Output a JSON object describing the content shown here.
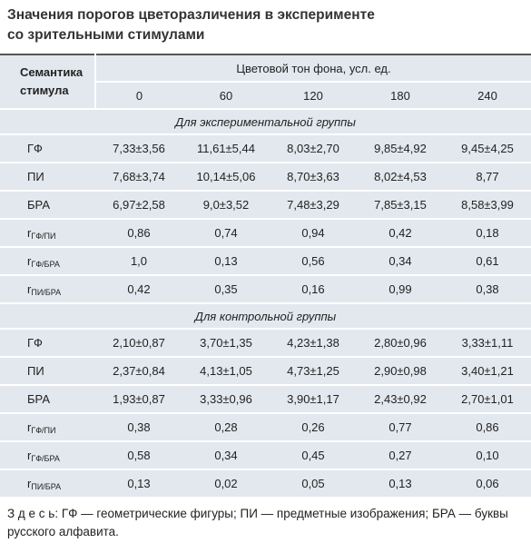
{
  "title": [
    "Значения порогов цветоразличения в эксперименте",
    "со зрительными стимулами"
  ],
  "table": {
    "header": {
      "stub": [
        "Семантика",
        "стимула"
      ],
      "group": "Цветовой тон фона, усл. ед.",
      "columns": [
        "0",
        "60",
        "120",
        "180",
        "240"
      ]
    },
    "sections": [
      {
        "title": "Для экспериментальной группы",
        "rows": [
          {
            "label": "ГФ",
            "cells": [
              "7,33±3,56",
              "11,61±5,44",
              "8,03±2,70",
              "9,85±4,92",
              "9,45±4,25"
            ]
          },
          {
            "label": "ПИ",
            "cells": [
              "7,68±3,74",
              "10,14±5,06",
              "8,70±3,63",
              "8,02±4,53",
              "8,77"
            ]
          },
          {
            "label": "БРА",
            "cells": [
              "6,97±2,58",
              "9,0±3,52",
              "7,48±3,29",
              "7,85±3,15",
              "8,58±3,99"
            ]
          },
          {
            "label": "r",
            "label_sub": "ГФ/ПИ",
            "cells": [
              "0,86",
              "0,74",
              "0,94",
              "0,42",
              "0,18"
            ]
          },
          {
            "label": "r",
            "label_sub": "ГФ/БРА",
            "cells": [
              "1,0",
              "0,13",
              "0,56",
              "0,34",
              "0,61"
            ]
          },
          {
            "label": "r",
            "label_sub": "ПИ/БРА",
            "cells": [
              "0,42",
              "0,35",
              "0,16",
              "0,99",
              "0,38"
            ]
          }
        ]
      },
      {
        "title": "Для контрольной группы",
        "rows": [
          {
            "label": "ГФ",
            "cells": [
              "2,10±0,87",
              "3,70±1,35",
              "4,23±1,38",
              "2,80±0,96",
              "3,33±1,11"
            ]
          },
          {
            "label": "ПИ",
            "cells": [
              "2,37±0,84",
              "4,13±1,05",
              "4,73±1,25",
              "2,90±0,98",
              "3,40±1,21"
            ]
          },
          {
            "label": "БРА",
            "cells": [
              "1,93±0,87",
              "3,33±0,96",
              "3,90±1,17",
              "2,43±0,92",
              "2,70±1,01"
            ]
          },
          {
            "label": "r",
            "label_sub": "ГФ/ПИ",
            "cells": [
              "0,38",
              "0,28",
              "0,26",
              "0,77",
              "0,86"
            ]
          },
          {
            "label": "r",
            "label_sub": "ГФ/БРА",
            "cells": [
              "0,58",
              "0,34",
              "0,45",
              "0,27",
              "0,10"
            ]
          },
          {
            "label": "r",
            "label_sub": "ПИ/БРА",
            "cells": [
              "0,13",
              "0,02",
              "0,05",
              "0,13",
              "0,06"
            ]
          }
        ]
      }
    ]
  },
  "note": "З д е с ь: ГФ — геометрические фигуры; ПИ — предметные изображения; БРА — буквы русского алфавита."
}
